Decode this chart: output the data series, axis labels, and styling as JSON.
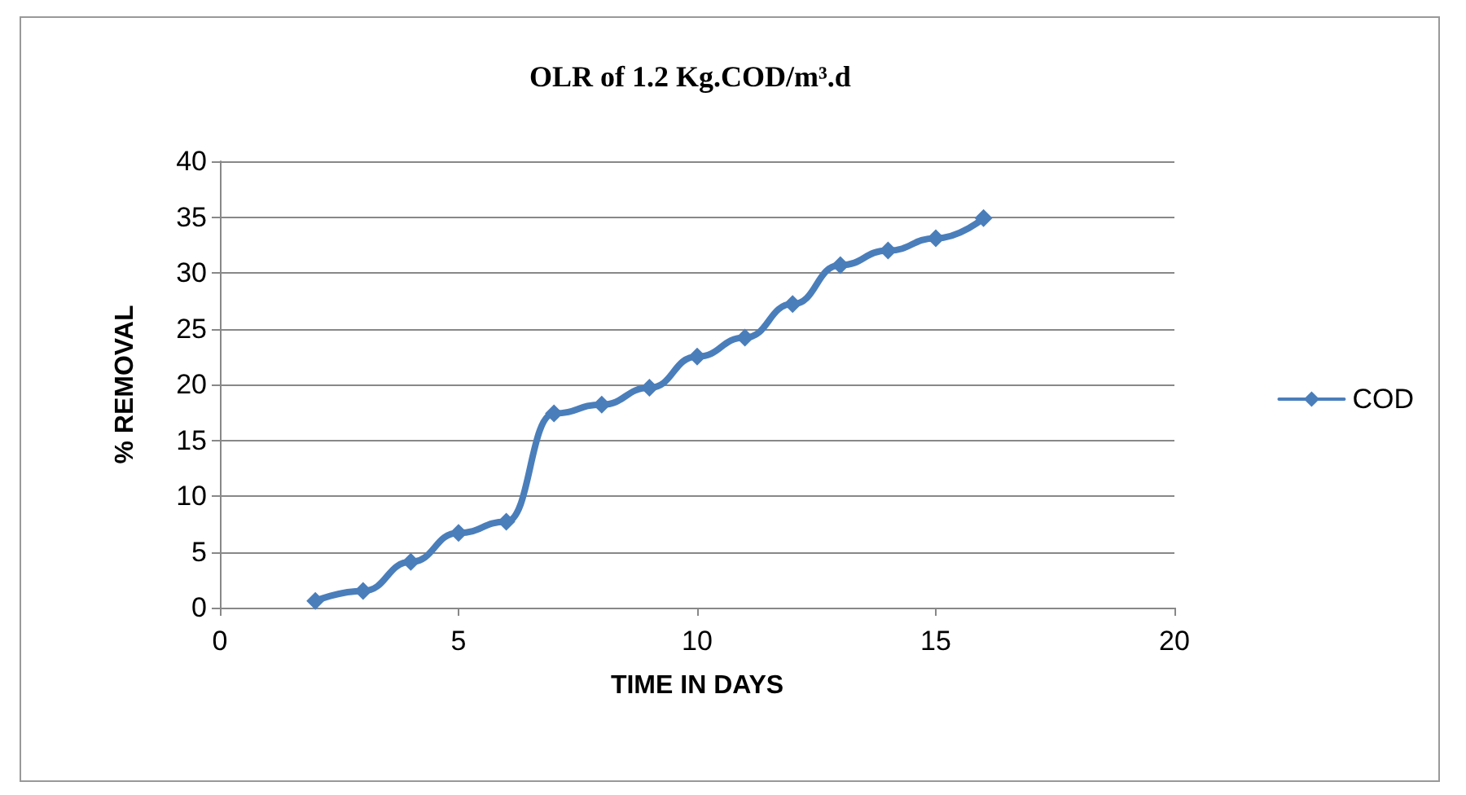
{
  "chart_data": {
    "type": "line",
    "title": "OLR of 1.2 Kg.COD/m³.d",
    "xlabel": "TIME IN DAYS",
    "ylabel": "% REMOVAL",
    "x": [
      2,
      3,
      4,
      5,
      6,
      7,
      8,
      9,
      10,
      11,
      12,
      13,
      14,
      15,
      16
    ],
    "series": [
      {
        "name": "COD",
        "color": "#4a7ebb",
        "values": [
          0.6,
          1.5,
          4.1,
          6.7,
          7.7,
          17.4,
          18.2,
          19.7,
          22.5,
          24.2,
          27.2,
          30.7,
          32.0,
          33.1,
          34.9
        ]
      }
    ],
    "xlim": [
      0,
      20
    ],
    "xticks": [
      0,
      5,
      10,
      15,
      20
    ],
    "ylim": [
      0,
      40
    ],
    "yticks": [
      0,
      5,
      10,
      15,
      20,
      25,
      30,
      35,
      40
    ],
    "grid": "y",
    "legend": "right",
    "marker": "diamond",
    "line_style": "solid"
  }
}
